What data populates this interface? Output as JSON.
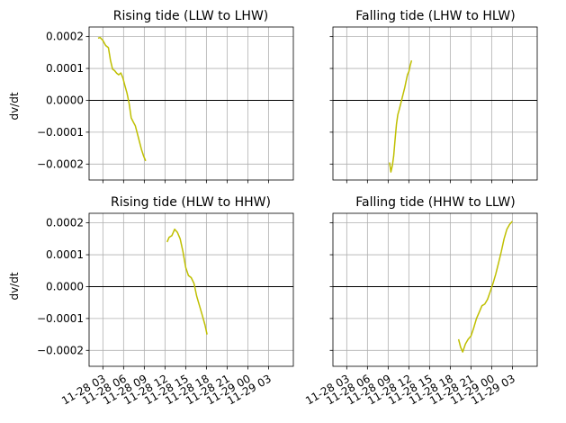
{
  "chart_data": {
    "type": "line",
    "layout": "2x2 grid, shared x and y axes",
    "ylabel": "dv/dt",
    "ylim": [
      -0.00025,
      0.00023
    ],
    "yticks": [
      -0.0002,
      -0.0001,
      0.0,
      0.0001,
      0.0002
    ],
    "ytick_labels": [
      "−0.0002",
      "−0.0001",
      "0.0000",
      "0.0001",
      "0.0002"
    ],
    "xlim_hours": [
      1.0,
      30.6
    ],
    "xaxis": "date-time, 2020 shown as month-day hour",
    "xticks_hours": [
      3,
      6,
      9,
      12,
      15,
      18,
      21,
      24,
      27
    ],
    "xtick_labels": [
      "11-28 03",
      "11-28 06",
      "11-28 09",
      "11-28 12",
      "11-28 15",
      "11-28 18",
      "11-28 21",
      "11-29 00",
      "11-29 03"
    ],
    "grid": true,
    "zero_line_color": "#000000",
    "series_color": "#bfbf00",
    "panels": [
      {
        "title": "Rising tide (LLW to LHW)",
        "x": [
          2.3,
          2.6,
          3.0,
          3.4,
          3.8,
          4.1,
          4.4,
          4.7,
          5.0,
          5.3,
          5.6,
          5.9,
          6.2,
          6.5,
          6.8,
          7.1,
          7.4,
          7.7,
          8.0,
          8.3,
          8.6,
          8.9,
          9.2
        ],
        "y": [
          0.000195,
          0.000197,
          0.000188,
          0.000172,
          0.000165,
          0.000125,
          9.8e-05,
          9.3e-05,
          8.5e-05,
          8e-05,
          8.6e-05,
          7e-05,
          4.5e-05,
          2.2e-05,
          -1e-05,
          -5.5e-05,
          -6.8e-05,
          -8e-05,
          -0.000105,
          -0.00013,
          -0.000155,
          -0.000175,
          -0.00019
        ]
      },
      {
        "title": "Falling tide (LHW to HLW)",
        "x": [
          9.2,
          9.4,
          9.6,
          9.8,
          10.0,
          10.2,
          10.4,
          10.6,
          10.8,
          11.0,
          11.2,
          11.4,
          11.6,
          11.8,
          12.0,
          12.2,
          12.4
        ],
        "y": [
          -0.000195,
          -0.000225,
          -0.000205,
          -0.000175,
          -0.000125,
          -7.5e-05,
          -4.5e-05,
          -3e-05,
          -1.2e-05,
          5e-06,
          2.2e-05,
          4e-05,
          6e-05,
          8e-05,
          9e-05,
          0.00011,
          0.000125
        ]
      },
      {
        "title": "Rising tide (HLW to HHW)",
        "x": [
          12.3,
          12.6,
          13.0,
          13.4,
          13.8,
          14.2,
          14.6,
          15.0,
          15.4,
          15.8,
          16.2,
          16.6,
          17.0,
          17.4,
          17.8,
          18.1
        ],
        "y": [
          0.00014,
          0.000155,
          0.00016,
          0.00018,
          0.00017,
          0.00015,
          0.00011,
          6e-05,
          3.5e-05,
          2.8e-05,
          1e-05,
          -3e-05,
          -6e-05,
          -9e-05,
          -0.00012,
          -0.00015
        ]
      },
      {
        "title": "Falling tide (HHW to LLW)",
        "x": [
          19.2,
          19.5,
          19.8,
          20.2,
          20.6,
          21.0,
          21.4,
          21.8,
          22.2,
          22.6,
          23.0,
          23.4,
          23.8,
          24.2,
          24.6,
          25.0,
          25.4,
          25.8,
          26.2,
          26.6,
          27.0
        ],
        "y": [
          -0.000165,
          -0.00019,
          -0.000205,
          -0.00018,
          -0.000165,
          -0.000155,
          -0.00013,
          -0.0001,
          -8e-05,
          -6e-05,
          -5.5e-05,
          -4e-05,
          -1.5e-05,
          1e-05,
          4e-05,
          7.5e-05,
          0.00011,
          0.00015,
          0.00018,
          0.000195,
          0.000205
        ]
      }
    ]
  }
}
